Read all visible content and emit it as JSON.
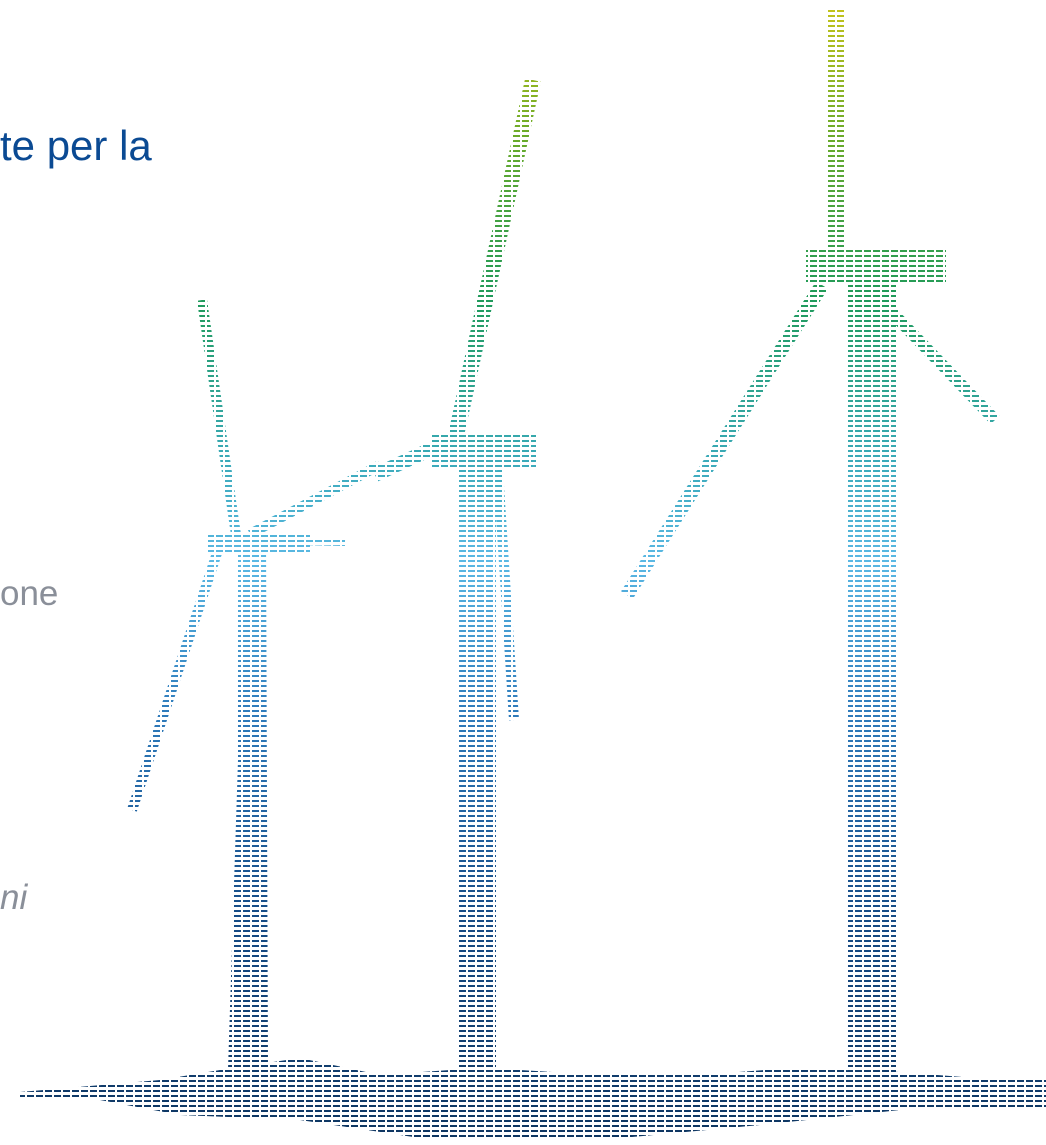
{
  "heading": "te per la",
  "line_one": "one",
  "line_two": "ni"
}
